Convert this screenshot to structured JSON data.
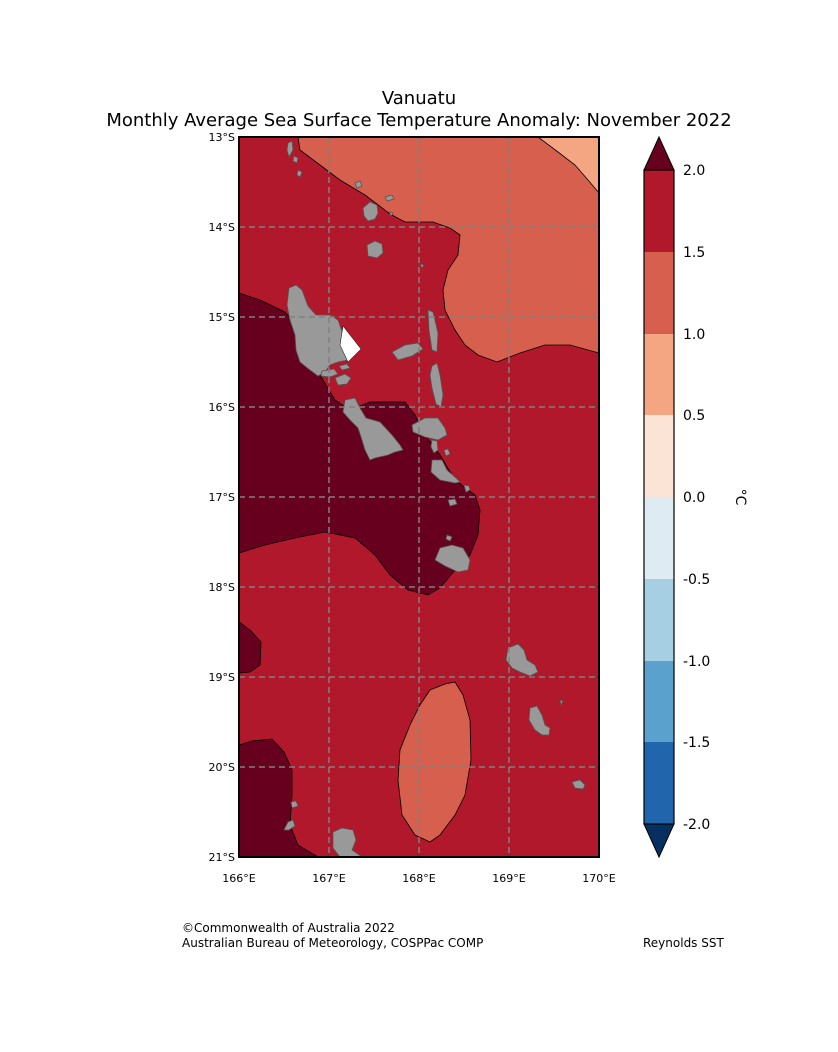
{
  "title": {
    "line1": "Vanuatu",
    "line2": "Monthly Average Sea Surface Temperature Anomaly: November 2022"
  },
  "map": {
    "lon_range": [
      166,
      170
    ],
    "lat_range": [
      -21,
      -13
    ],
    "grid": "dashed",
    "lat_ticks": [
      "13°S",
      "14°S",
      "15°S",
      "16°S",
      "17°S",
      "18°S",
      "19°S",
      "20°S",
      "21°S"
    ],
    "lon_ticks": [
      "166°E",
      "167°E",
      "168°E",
      "169°E",
      "170°E"
    ],
    "colors": {
      "above_2.0": "#67001f",
      "1.5_to_2.0": "#b2182b",
      "1.0_to_1.5": "#d6604d",
      "0.5_to_1.0": "#f4a582",
      "land": "#999999",
      "grid": "#808080"
    }
  },
  "colorbar": {
    "unit": "°C",
    "ticks": [
      "2.0",
      "1.5",
      "1.0",
      "0.5",
      "0.0",
      "-0.5",
      "-1.0",
      "-1.5",
      "-2.0"
    ],
    "colors": [
      "#b2182b",
      "#d6604d",
      "#f4a582",
      "#fbe3d6",
      "#deebf2",
      "#a6cfe3",
      "#5aa1cd",
      "#2166ac"
    ],
    "over_color": "#67001f",
    "under_color": "#053061"
  },
  "credits": {
    "copyright": "©Commonwealth of Australia 2022",
    "agency": "Australian Bureau of Meteorology, COSPPac COMP",
    "source": "Reynolds SST"
  }
}
